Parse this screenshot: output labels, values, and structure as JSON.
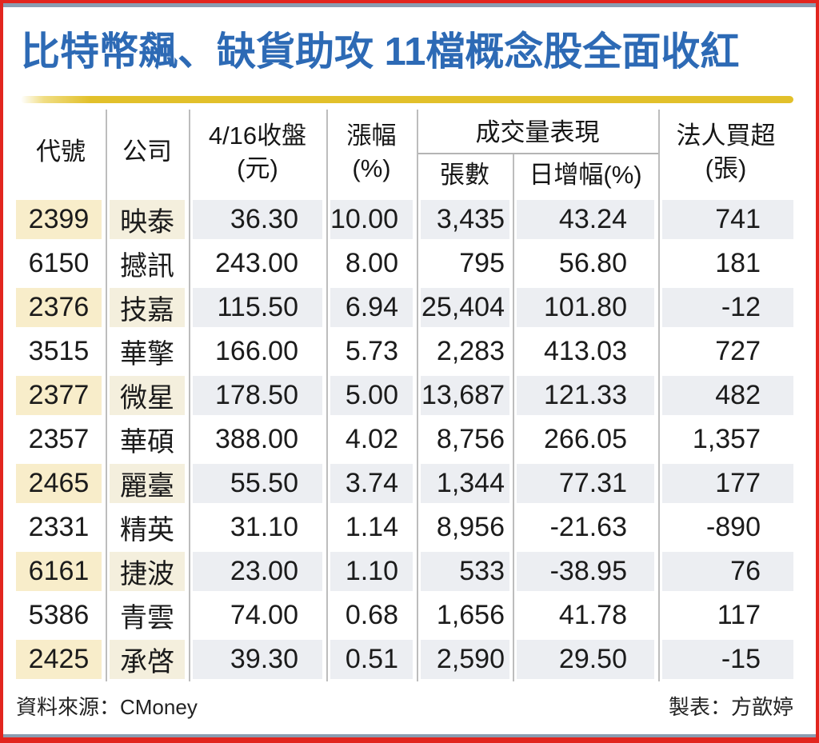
{
  "title": "比特幣飆、缺貨助攻 11檔概念股全面收紅",
  "table": {
    "headers": {
      "code": "代號",
      "company": "公司",
      "close_l1": "4/16收盤",
      "close_l2": "(元)",
      "change_l1": "漲幅",
      "change_l2": "(%)",
      "volume_group": "成交量表現",
      "volume": "張數",
      "day_change": "日增幅(%)",
      "net_buy_l1": "法人買超",
      "net_buy_l2": "(張)"
    },
    "rows": [
      {
        "code": "2399",
        "company": "映泰",
        "close": "36.30",
        "change": "10.00",
        "volume": "3,435",
        "day_change": "43.24",
        "net_buy": "741"
      },
      {
        "code": "6150",
        "company": "撼訊",
        "close": "243.00",
        "change": "8.00",
        "volume": "795",
        "day_change": "56.80",
        "net_buy": "181"
      },
      {
        "code": "2376",
        "company": "技嘉",
        "close": "115.50",
        "change": "6.94",
        "volume": "25,404",
        "day_change": "101.80",
        "net_buy": "-12"
      },
      {
        "code": "3515",
        "company": "華擎",
        "close": "166.00",
        "change": "5.73",
        "volume": "2,283",
        "day_change": "413.03",
        "net_buy": "727"
      },
      {
        "code": "2377",
        "company": "微星",
        "close": "178.50",
        "change": "5.00",
        "volume": "13,687",
        "day_change": "121.33",
        "net_buy": "482"
      },
      {
        "code": "2357",
        "company": "華碩",
        "close": "388.00",
        "change": "4.02",
        "volume": "8,756",
        "day_change": "266.05",
        "net_buy": "1,357"
      },
      {
        "code": "2465",
        "company": "麗臺",
        "close": "55.50",
        "change": "3.74",
        "volume": "1,344",
        "day_change": "77.31",
        "net_buy": "177"
      },
      {
        "code": "2331",
        "company": "精英",
        "close": "31.10",
        "change": "1.14",
        "volume": "8,956",
        "day_change": "-21.63",
        "net_buy": "-890"
      },
      {
        "code": "6161",
        "company": "捷波",
        "close": "23.00",
        "change": "1.10",
        "volume": "533",
        "day_change": "-38.95",
        "net_buy": "76"
      },
      {
        "code": "5386",
        "company": "青雲",
        "close": "74.00",
        "change": "0.68",
        "volume": "1,656",
        "day_change": "41.78",
        "net_buy": "117"
      },
      {
        "code": "2425",
        "company": "承啓",
        "close": "39.30",
        "change": "0.51",
        "volume": "2,590",
        "day_change": "29.50",
        "net_buy": "-15"
      }
    ]
  },
  "footer": {
    "source": "資料來源：CMoney",
    "credit": "製表：方歆婷"
  },
  "colors": {
    "frame_red": "#e2251e",
    "frame_slate": "#8a9db1",
    "title_blue": "#2d6ab5",
    "rule_gold": "#e2c02a",
    "row_code_beige": "#f8edca",
    "row_company_beige": "#f4efdd",
    "row_numeric_gray": "#eceef2"
  }
}
